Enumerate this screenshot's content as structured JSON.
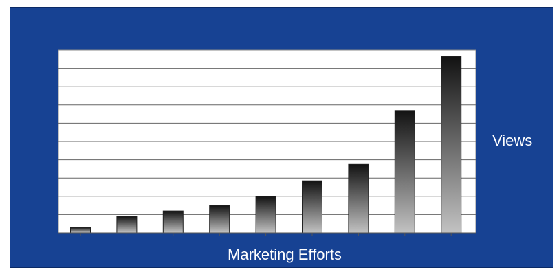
{
  "chart_data": {
    "type": "bar",
    "title": "",
    "xlabel": "Marketing Efforts",
    "ylabel": "Views",
    "ylim": [
      0,
      10
    ],
    "grid": true,
    "legend": "none",
    "categories": [
      "",
      "",
      "",
      "",
      "",
      "",
      "",
      "",
      ""
    ],
    "values": [
      0.3,
      0.9,
      1.2,
      1.5,
      2.0,
      2.85,
      3.75,
      6.7,
      9.65
    ]
  },
  "colors": {
    "background": "#174293",
    "plot_area": "#ffffff",
    "gridline": "#666666",
    "bar_top": "#121212",
    "bar_bottom": "#c2c2c2",
    "label": "#ffffff"
  }
}
